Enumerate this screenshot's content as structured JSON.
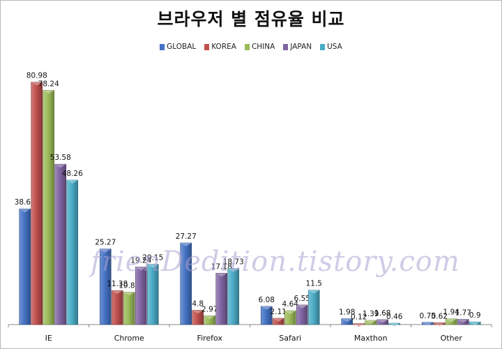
{
  "chart_data": {
    "type": "bar",
    "title": "브라우저 별 점유율 비교",
    "categories": [
      "IE",
      "Chrome",
      "Firefox",
      "Safari",
      "Maxthon",
      "Other"
    ],
    "series": [
      {
        "name": "GLOBAL",
        "color": "#4472C4",
        "values": [
          38.65,
          25.27,
          27.27,
          6.08,
          1.98,
          0.75
        ]
      },
      {
        "name": "KOREA",
        "color": "#C0504D",
        "values": [
          80.98,
          11.38,
          4.8,
          2.11,
          0.12,
          0.62
        ]
      },
      {
        "name": "CHINA",
        "color": "#9BBB59",
        "values": [
          78.24,
          10.83,
          2.97,
          4.64,
          1.39,
          1.94
        ]
      },
      {
        "name": "JAPAN",
        "color": "#8064A2",
        "values": [
          53.58,
          19.24,
          17.18,
          6.55,
          1.68,
          1.77
        ]
      },
      {
        "name": "USA",
        "color": "#4BACC6",
        "values": [
          48.26,
          20.15,
          18.73,
          11.5,
          0.46,
          0.9
        ]
      }
    ],
    "ylim": [
      0,
      90
    ],
    "grid": false,
    "legend_position": "top",
    "watermark": "frienDedition.tistory.com"
  }
}
